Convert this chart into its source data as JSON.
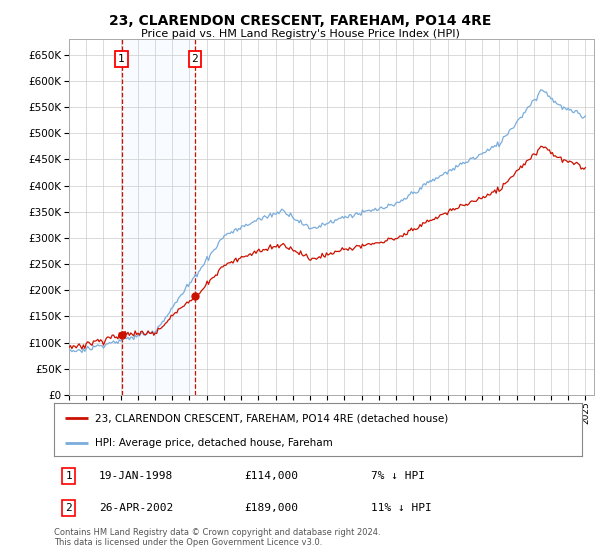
{
  "title": "23, CLARENDON CRESCENT, FAREHAM, PO14 4RE",
  "subtitle": "Price paid vs. HM Land Registry's House Price Index (HPI)",
  "sale1_date": "19-JAN-1998",
  "sale1_price": 114000,
  "sale1_hpi_diff": "7% ↓ HPI",
  "sale1_label": "1",
  "sale1_year": 1998.05,
  "sale2_date": "26-APR-2002",
  "sale2_price": 189000,
  "sale2_hpi_diff": "11% ↓ HPI",
  "sale2_label": "2",
  "sale2_year": 2002.32,
  "hpi_line_color": "#7aaddc",
  "price_line_color": "#cc1100",
  "vline_color": "#cc1100",
  "shade_color": "#ddeeff",
  "marker_color": "#cc1100",
  "legend_label_price": "23, CLARENDON CRESCENT, FAREHAM, PO14 4RE (detached house)",
  "legend_label_hpi": "HPI: Average price, detached house, Fareham",
  "footer1": "Contains HM Land Registry data © Crown copyright and database right 2024.",
  "footer2": "This data is licensed under the Open Government Licence v3.0.",
  "ylim": [
    0,
    680000
  ],
  "yticks": [
    0,
    50000,
    100000,
    150000,
    200000,
    250000,
    300000,
    350000,
    400000,
    450000,
    500000,
    550000,
    600000,
    650000
  ],
  "xmin": 1995,
  "xmax": 2025.5,
  "background_color": "#ffffff",
  "grid_color": "#cccccc"
}
